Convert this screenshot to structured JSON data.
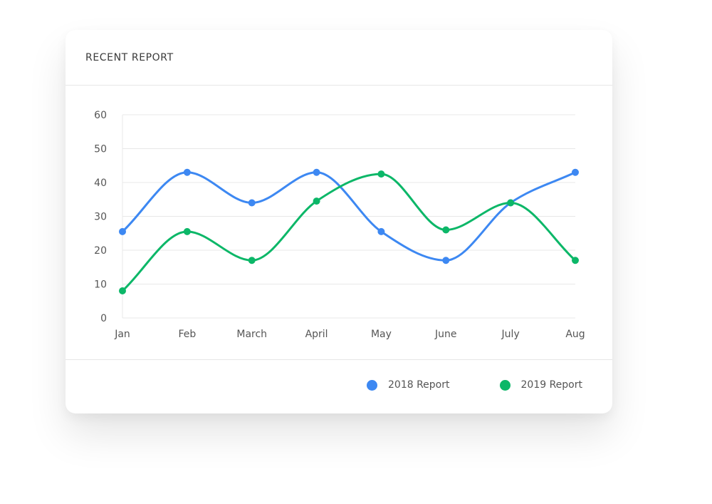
{
  "card": {
    "title": "RECENT REPORT"
  },
  "chart_data": {
    "type": "line",
    "categories": [
      "Jan",
      "Feb",
      "March",
      "April",
      "May",
      "June",
      "July",
      "Aug"
    ],
    "ylim": [
      0,
      60
    ],
    "yticks": [
      0,
      10,
      20,
      30,
      40,
      50,
      60
    ],
    "grid": true,
    "smooth": true,
    "legend_position": "bottom-right",
    "series": [
      {
        "name": "2018 Report",
        "color": "#3d88f2",
        "values": [
          25.5,
          43,
          34,
          43,
          25.5,
          17,
          34,
          43
        ]
      },
      {
        "name": "2019 Report",
        "color": "#0cb768",
        "values": [
          8,
          25.5,
          17,
          34.5,
          42.5,
          26,
          34,
          17
        ]
      }
    ]
  }
}
